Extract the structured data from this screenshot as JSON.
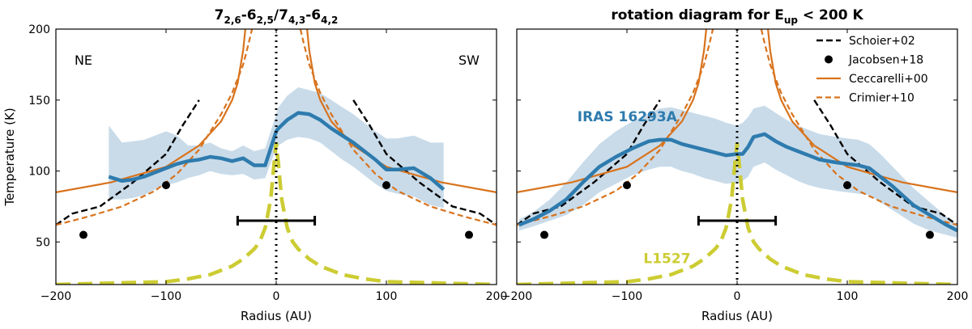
{
  "chart_data": [
    {
      "type": "line",
      "title": {
        "main": "7",
        "parts": [
          {
            "t": "7",
            "s": "2,6"
          },
          {
            "t": "-6",
            "s": "2,5"
          },
          {
            "t": "/7",
            "s": "4,3"
          },
          {
            "t": "-6",
            "s": "4,2"
          }
        ]
      },
      "xlabel": "Radius (AU)",
      "ylabel": "Temperature (K)",
      "xlim": [
        -200,
        200
      ],
      "ylim": [
        20,
        200
      ],
      "xticks": [
        -200,
        -100,
        0,
        100,
        200
      ],
      "xtick_labels": [
        "−200",
        "−100",
        "0",
        "100",
        "200"
      ],
      "yticks": [
        50,
        100,
        150,
        200
      ],
      "annotations": [
        {
          "text": "NE",
          "x": -175,
          "y": 175
        },
        {
          "text": "SW",
          "x": 175,
          "y": 175
        }
      ],
      "series": [
        {
          "name": "Schoier+02",
          "style": "black-dashed",
          "segments": [
            {
              "x": [
                -200,
                -185,
                -160,
                -130,
                -100,
                -85,
                -70
              ],
              "y": [
                62,
                70,
                75,
                92,
                112,
                132,
                150
              ]
            },
            {
              "x": [
                70,
                85,
                100,
                130,
                160,
                185,
                200
              ],
              "y": [
                150,
                132,
                112,
                92,
                75,
                70,
                62
              ]
            }
          ]
        },
        {
          "name": "Jacobsen+18",
          "style": "black-dots",
          "x": [
            -175,
            -100,
            100,
            175
          ],
          "y": [
            55,
            90,
            90,
            55
          ]
        },
        {
          "name": "Ceccarelli+00",
          "style": "orange-solid",
          "segments": [
            {
              "x": [
                -200,
                -150,
                -100,
                -70,
                -50,
                -40,
                -35,
                -30,
                -28
              ],
              "y": [
                85,
                92,
                103,
                118,
                135,
                150,
                162,
                185,
                200
              ]
            },
            {
              "x": [
                28,
                30,
                35,
                40,
                50,
                70,
                100,
                150,
                200
              ],
              "y": [
                200,
                185,
                162,
                150,
                135,
                118,
                103,
                92,
                85
              ]
            }
          ]
        },
        {
          "name": "Crimier+10",
          "style": "orange-dashed",
          "segments": [
            {
              "x": [
                -200,
                -170,
                -140,
                -110,
                -90,
                -70,
                -50,
                -40,
                -30,
                -25,
                -22
              ],
              "y": [
                62,
                68,
                75,
                86,
                98,
                115,
                140,
                155,
                175,
                190,
                200
              ]
            },
            {
              "x": [
                22,
                25,
                30,
                40,
                50,
                70,
                90,
                110,
                140,
                170,
                200
              ],
              "y": [
                200,
                190,
                175,
                155,
                140,
                115,
                98,
                86,
                75,
                68,
                62
              ]
            }
          ]
        },
        {
          "name": "IRAS 16293A",
          "style": "blue-thick",
          "x": [
            -152,
            -140,
            -130,
            -120,
            -110,
            -100,
            -90,
            -80,
            -70,
            -60,
            -50,
            -40,
            -30,
            -20,
            -10,
            0,
            2,
            10,
            20,
            30,
            40,
            50,
            60,
            70,
            80,
            90,
            100,
            110,
            125,
            140,
            152
          ],
          "y": [
            96,
            93,
            94,
            96,
            99,
            102,
            105,
            107,
            108,
            110,
            109,
            107,
            109,
            104,
            104,
            128,
            130,
            136,
            141,
            140,
            136,
            130,
            125,
            120,
            114,
            108,
            101,
            101,
            102,
            95,
            87
          ],
          "band_upper": [
            132,
            120,
            121,
            122,
            125,
            128,
            125,
            118,
            118,
            120,
            116,
            114,
            118,
            114,
            116,
            140,
            145,
            153,
            159,
            157,
            155,
            150,
            145,
            140,
            134,
            128,
            123,
            123,
            125,
            120,
            120
          ],
          "band_lower": [
            80,
            80,
            81,
            83,
            87,
            90,
            92,
            95,
            97,
            100,
            98,
            97,
            98,
            94,
            95,
            116,
            118,
            122,
            124,
            123,
            120,
            114,
            108,
            103,
            97,
            91,
            86,
            84,
            82,
            76,
            74
          ]
        },
        {
          "name": "L1527",
          "style": "yellow-dashed",
          "x": [
            -200,
            -150,
            -100,
            -80,
            -60,
            -40,
            -30,
            -20,
            -15,
            -10,
            -5,
            -2,
            0,
            2,
            5,
            10,
            15,
            20,
            30,
            40,
            60,
            80,
            100,
            150,
            200
          ],
          "y": [
            20,
            21,
            22,
            24,
            27,
            33,
            38,
            45,
            50,
            60,
            80,
            105,
            120,
            105,
            80,
            60,
            50,
            45,
            38,
            33,
            27,
            24,
            22,
            21,
            20
          ]
        }
      ],
      "errorbar": {
        "x_from": -35,
        "x_to": 35,
        "y": 65
      },
      "vline_x": 0
    },
    {
      "type": "line",
      "title": {
        "main": "rotation diagram for E",
        "sub": "up",
        "rest": " < 200 K"
      },
      "xlabel": "Radius (AU)",
      "ylabel": "",
      "xlim": [
        -200,
        200
      ],
      "ylim": [
        20,
        200
      ],
      "xticks": [
        -200,
        -100,
        0,
        100,
        200
      ],
      "xtick_labels": [
        "−200",
        "−100",
        "0",
        "100",
        "200"
      ],
      "yticks": [
        50,
        100,
        150,
        200
      ],
      "annotations": [
        {
          "text": "IRAS 16293A",
          "x": -145,
          "y": 135,
          "color": "#2e7bae"
        },
        {
          "text": "L1527",
          "x": -85,
          "y": 35,
          "color": "#cccc33"
        }
      ],
      "legend": {
        "placement": "top-right",
        "entries": [
          {
            "label": "Schoier+02",
            "style": "black-dashed"
          },
          {
            "label": "Jacobsen+18",
            "style": "black-dots"
          },
          {
            "label": "Ceccarelli+00",
            "style": "orange-solid"
          },
          {
            "label": "Crimier+10",
            "style": "orange-dashed"
          }
        ]
      },
      "series": [
        {
          "name": "Schoier+02",
          "style": "black-dashed",
          "segments": [
            {
              "x": [
                -200,
                -185,
                -160,
                -130,
                -100,
                -85,
                -70
              ],
              "y": [
                62,
                70,
                75,
                92,
                112,
                132,
                150
              ]
            },
            {
              "x": [
                70,
                85,
                100,
                130,
                160,
                185,
                200
              ],
              "y": [
                150,
                132,
                112,
                92,
                75,
                70,
                62
              ]
            }
          ]
        },
        {
          "name": "Jacobsen+18",
          "style": "black-dots",
          "x": [
            -175,
            -100,
            100,
            175
          ],
          "y": [
            55,
            90,
            90,
            55
          ]
        },
        {
          "name": "Ceccarelli+00",
          "style": "orange-solid",
          "segments": [
            {
              "x": [
                -200,
                -150,
                -100,
                -70,
                -50,
                -40,
                -35,
                -30,
                -28
              ],
              "y": [
                85,
                92,
                103,
                118,
                135,
                150,
                162,
                185,
                200
              ]
            },
            {
              "x": [
                28,
                30,
                35,
                40,
                50,
                70,
                100,
                150,
                200
              ],
              "y": [
                200,
                185,
                162,
                150,
                135,
                118,
                103,
                92,
                85
              ]
            }
          ]
        },
        {
          "name": "Crimier+10",
          "style": "orange-dashed",
          "segments": [
            {
              "x": [
                -200,
                -170,
                -140,
                -110,
                -90,
                -70,
                -50,
                -40,
                -30,
                -25,
                -22
              ],
              "y": [
                62,
                68,
                75,
                86,
                98,
                115,
                140,
                155,
                175,
                190,
                200
              ]
            },
            {
              "x": [
                22,
                25,
                30,
                40,
                50,
                70,
                90,
                110,
                140,
                170,
                200
              ],
              "y": [
                200,
                190,
                175,
                155,
                140,
                115,
                98,
                86,
                75,
                68,
                62
              ]
            }
          ]
        },
        {
          "name": "IRAS 16293A",
          "style": "blue-thick",
          "x": [
            -198,
            -185,
            -170,
            -155,
            -140,
            -125,
            -110,
            -95,
            -80,
            -70,
            -60,
            -50,
            -40,
            -30,
            -20,
            -10,
            0,
            5,
            10,
            15,
            25,
            35,
            45,
            55,
            65,
            75,
            90,
            100,
            110,
            120,
            130,
            140,
            150,
            160,
            175,
            190,
            200
          ],
          "y": [
            62,
            66,
            72,
            80,
            92,
            103,
            110,
            116,
            121,
            122,
            122,
            119,
            117,
            115,
            113,
            111,
            112,
            112,
            117,
            124,
            126,
            121,
            117,
            114,
            111,
            108,
            106,
            105,
            104,
            102,
            96,
            90,
            83,
            76,
            69,
            62,
            58
          ],
          "band_upper": [
            66,
            71,
            80,
            92,
            106,
            119,
            128,
            135,
            141,
            144,
            145,
            143,
            141,
            139,
            137,
            134,
            132,
            134,
            138,
            144,
            146,
            141,
            136,
            132,
            129,
            126,
            124,
            123,
            122,
            119,
            112,
            104,
            96,
            88,
            78,
            68,
            62
          ],
          "band_lower": [
            58,
            61,
            65,
            69,
            76,
            85,
            91,
            97,
            101,
            103,
            103,
            100,
            98,
            95,
            93,
            91,
            92,
            93,
            96,
            103,
            106,
            101,
            97,
            93,
            90,
            88,
            86,
            85,
            84,
            83,
            78,
            73,
            68,
            63,
            58,
            55,
            53
          ]
        },
        {
          "name": "L1527",
          "style": "yellow-dashed",
          "x": [
            -200,
            -150,
            -100,
            -80,
            -60,
            -40,
            -30,
            -20,
            -15,
            -10,
            -5,
            -2,
            0,
            2,
            5,
            10,
            15,
            20,
            30,
            40,
            60,
            80,
            100,
            150,
            200
          ],
          "y": [
            20,
            21,
            22,
            24,
            27,
            33,
            38,
            45,
            50,
            60,
            80,
            105,
            120,
            105,
            80,
            60,
            50,
            45,
            38,
            33,
            27,
            24,
            22,
            21,
            20
          ]
        }
      ],
      "errorbar": {
        "x_from": -35,
        "x_to": 35,
        "y": 65
      },
      "vline_x": 0
    }
  ],
  "colors": {
    "black": "#000000",
    "blue": "#2e7bae",
    "band": "#c9dbe9",
    "orange": "#d8731d",
    "yellow": "#cccc33"
  }
}
